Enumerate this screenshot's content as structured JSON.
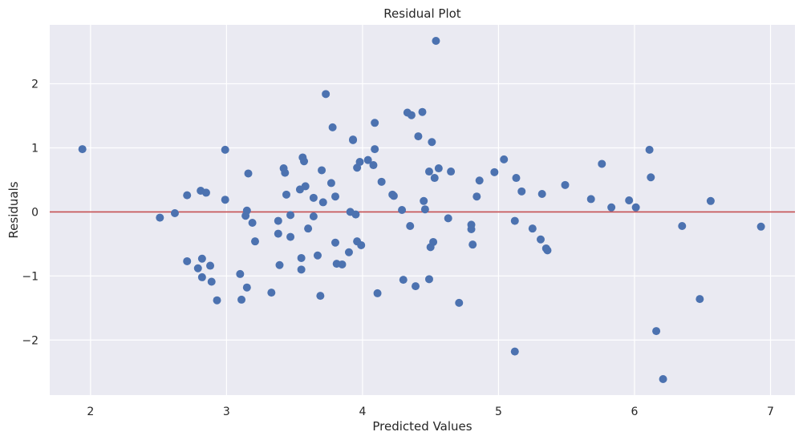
{
  "chart_data": {
    "type": "scatter",
    "title": "Residual Plot",
    "xlabel": "Predicted Values",
    "ylabel": "Residuals",
    "xlim": [
      1.7,
      7.18
    ],
    "ylim": [
      -2.86,
      2.92
    ],
    "xticks": [
      2,
      3,
      4,
      5,
      6,
      7
    ],
    "yticks": [
      -2,
      -1,
      0,
      1,
      2
    ],
    "ytick_labels": [
      "−2",
      "−1",
      "0",
      "1",
      "2"
    ],
    "grid": true,
    "reference_line": {
      "y": 0,
      "color": "#c44e52"
    },
    "point_color": "#4c72b0",
    "background_color": "#eaeaf2",
    "points": [
      [
        1.94,
        0.98
      ],
      [
        2.51,
        -0.09
      ],
      [
        2.62,
        -0.02
      ],
      [
        2.71,
        0.26
      ],
      [
        2.71,
        -0.77
      ],
      [
        2.79,
        -0.88
      ],
      [
        2.81,
        0.33
      ],
      [
        2.82,
        -1.02
      ],
      [
        2.82,
        -0.73
      ],
      [
        2.85,
        0.3
      ],
      [
        2.88,
        -0.84
      ],
      [
        2.89,
        -1.09
      ],
      [
        2.93,
        -1.38
      ],
      [
        2.99,
        0.97
      ],
      [
        2.99,
        0.19
      ],
      [
        3.1,
        -0.97
      ],
      [
        3.11,
        -1.37
      ],
      [
        3.14,
        -0.06
      ],
      [
        3.15,
        0.02
      ],
      [
        3.16,
        0.6
      ],
      [
        3.15,
        -1.18
      ],
      [
        3.19,
        -0.17
      ],
      [
        3.21,
        -0.46
      ],
      [
        3.33,
        -1.26
      ],
      [
        3.38,
        -0.14
      ],
      [
        3.38,
        -0.34
      ],
      [
        3.39,
        -0.83
      ],
      [
        3.42,
        0.68
      ],
      [
        3.43,
        0.61
      ],
      [
        3.44,
        0.27
      ],
      [
        3.47,
        -0.05
      ],
      [
        3.47,
        -0.39
      ],
      [
        3.54,
        0.35
      ],
      [
        3.55,
        -0.72
      ],
      [
        3.55,
        -0.9
      ],
      [
        3.56,
        0.85
      ],
      [
        3.57,
        0.79
      ],
      [
        3.58,
        0.4
      ],
      [
        3.6,
        -0.26
      ],
      [
        3.64,
        -0.07
      ],
      [
        3.64,
        0.22
      ],
      [
        3.67,
        -0.68
      ],
      [
        3.69,
        -1.31
      ],
      [
        3.7,
        0.65
      ],
      [
        3.71,
        0.15
      ],
      [
        3.73,
        1.84
      ],
      [
        3.77,
        0.45
      ],
      [
        3.78,
        1.32
      ],
      [
        3.8,
        0.24
      ],
      [
        3.8,
        -0.48
      ],
      [
        3.81,
        -0.81
      ],
      [
        3.85,
        -0.82
      ],
      [
        3.9,
        -0.63
      ],
      [
        3.91,
        0.0
      ],
      [
        3.93,
        1.13
      ],
      [
        3.93,
        1.12
      ],
      [
        3.95,
        -0.04
      ],
      [
        3.96,
        -0.46
      ],
      [
        3.96,
        0.69
      ],
      [
        3.98,
        0.78
      ],
      [
        3.99,
        -0.52
      ],
      [
        4.04,
        0.81
      ],
      [
        4.08,
        0.73
      ],
      [
        4.09,
        1.39
      ],
      [
        4.09,
        0.98
      ],
      [
        4.11,
        -1.27
      ],
      [
        4.14,
        0.47
      ],
      [
        4.22,
        0.27
      ],
      [
        4.23,
        0.25
      ],
      [
        4.29,
        0.03
      ],
      [
        4.3,
        -1.06
      ],
      [
        4.33,
        1.55
      ],
      [
        4.35,
        -0.22
      ],
      [
        4.36,
        1.51
      ],
      [
        4.39,
        -1.16
      ],
      [
        4.41,
        1.18
      ],
      [
        4.44,
        1.56
      ],
      [
        4.45,
        0.17
      ],
      [
        4.46,
        0.04
      ],
      [
        4.49,
        -1.05
      ],
      [
        4.49,
        0.63
      ],
      [
        4.5,
        -0.55
      ],
      [
        4.51,
        1.09
      ],
      [
        4.52,
        -0.47
      ],
      [
        4.53,
        0.53
      ],
      [
        4.54,
        2.67
      ],
      [
        4.56,
        0.68
      ],
      [
        4.63,
        -0.1
      ],
      [
        4.65,
        0.63
      ],
      [
        4.71,
        -1.42
      ],
      [
        4.8,
        -0.2
      ],
      [
        4.8,
        -0.27
      ],
      [
        4.81,
        -0.51
      ],
      [
        4.84,
        0.24
      ],
      [
        4.86,
        0.49
      ],
      [
        4.97,
        0.62
      ],
      [
        5.04,
        0.82
      ],
      [
        5.12,
        -0.14
      ],
      [
        5.12,
        -2.18
      ],
      [
        5.13,
        0.53
      ],
      [
        5.17,
        0.32
      ],
      [
        5.25,
        -0.26
      ],
      [
        5.31,
        -0.43
      ],
      [
        5.32,
        0.28
      ],
      [
        5.35,
        -0.57
      ],
      [
        5.36,
        -0.6
      ],
      [
        5.49,
        0.42
      ],
      [
        5.68,
        0.2
      ],
      [
        5.76,
        0.75
      ],
      [
        5.83,
        0.07
      ],
      [
        5.96,
        0.18
      ],
      [
        6.01,
        0.07
      ],
      [
        6.11,
        0.97
      ],
      [
        6.12,
        0.54
      ],
      [
        6.16,
        -1.86
      ],
      [
        6.21,
        -2.61
      ],
      [
        6.35,
        -0.22
      ],
      [
        6.48,
        -1.36
      ],
      [
        6.56,
        0.17
      ],
      [
        6.93,
        -0.23
      ]
    ]
  }
}
